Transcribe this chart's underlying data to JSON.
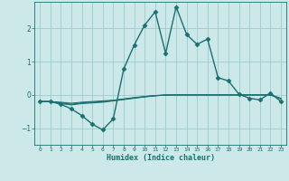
{
  "xlabel": "Humidex (Indice chaleur)",
  "ylabel": "",
  "background_color": "#cce8e8",
  "grid_color": "#99cccc",
  "line_color": "#1a7070",
  "xlim": [
    -0.5,
    23.5
  ],
  "ylim": [
    -1.5,
    2.8
  ],
  "yticks": [
    -1,
    0,
    1,
    2
  ],
  "xticks": [
    0,
    1,
    2,
    3,
    4,
    5,
    6,
    7,
    8,
    9,
    10,
    11,
    12,
    13,
    14,
    15,
    16,
    17,
    18,
    19,
    20,
    21,
    22,
    23
  ],
  "series": [
    {
      "x": [
        0,
        1,
        2,
        3,
        4,
        5,
        6,
        7,
        8,
        9,
        10,
        11,
        12,
        13,
        14,
        15,
        16,
        17,
        18,
        19,
        20,
        21,
        22,
        23
      ],
      "y": [
        -0.2,
        -0.2,
        -0.28,
        -0.42,
        -0.62,
        -0.88,
        -1.05,
        -0.72,
        0.78,
        1.5,
        2.1,
        2.5,
        1.25,
        2.65,
        1.82,
        1.52,
        1.68,
        0.52,
        0.42,
        0.02,
        -0.1,
        -0.15,
        0.06,
        -0.2
      ],
      "marker": "D",
      "markersize": 2.5,
      "linewidth": 1.0,
      "zorder": 5
    },
    {
      "x": [
        0,
        1,
        2,
        3,
        4,
        5,
        6,
        7,
        8,
        9,
        10,
        11,
        12,
        13,
        14,
        15,
        16,
        17,
        18,
        19,
        20,
        21,
        22,
        23
      ],
      "y": [
        -0.2,
        -0.2,
        -0.22,
        -0.25,
        -0.22,
        -0.2,
        -0.18,
        -0.16,
        -0.12,
        -0.08,
        -0.05,
        -0.02,
        -0.01,
        0.0,
        0.0,
        0.0,
        0.0,
        0.0,
        0.0,
        0.0,
        0.0,
        0.0,
        0.0,
        -0.1
      ],
      "marker": null,
      "markersize": 0,
      "linewidth": 0.8,
      "zorder": 3
    },
    {
      "x": [
        0,
        1,
        2,
        3,
        4,
        5,
        6,
        7,
        8,
        9,
        10,
        11,
        12,
        13,
        14,
        15,
        16,
        17,
        18,
        19,
        20,
        21,
        22,
        23
      ],
      "y": [
        -0.2,
        -0.2,
        -0.24,
        -0.28,
        -0.24,
        -0.22,
        -0.2,
        -0.17,
        -0.13,
        -0.09,
        -0.05,
        -0.02,
        0.0,
        0.0,
        0.0,
        0.0,
        0.0,
        0.0,
        0.0,
        0.0,
        0.0,
        0.0,
        0.0,
        -0.12
      ],
      "marker": null,
      "markersize": 0,
      "linewidth": 0.8,
      "zorder": 3
    },
    {
      "x": [
        0,
        1,
        2,
        3,
        4,
        5,
        6,
        7,
        8,
        9,
        10,
        11,
        12,
        13,
        14,
        15,
        16,
        17,
        18,
        19,
        20,
        21,
        22,
        23
      ],
      "y": [
        -0.2,
        -0.2,
        -0.26,
        -0.3,
        -0.26,
        -0.24,
        -0.22,
        -0.18,
        -0.14,
        -0.1,
        -0.06,
        -0.03,
        0.0,
        0.0,
        0.0,
        0.0,
        0.0,
        0.0,
        0.0,
        0.0,
        0.0,
        0.0,
        0.0,
        -0.11
      ],
      "marker": null,
      "markersize": 0,
      "linewidth": 0.8,
      "zorder": 3
    }
  ]
}
